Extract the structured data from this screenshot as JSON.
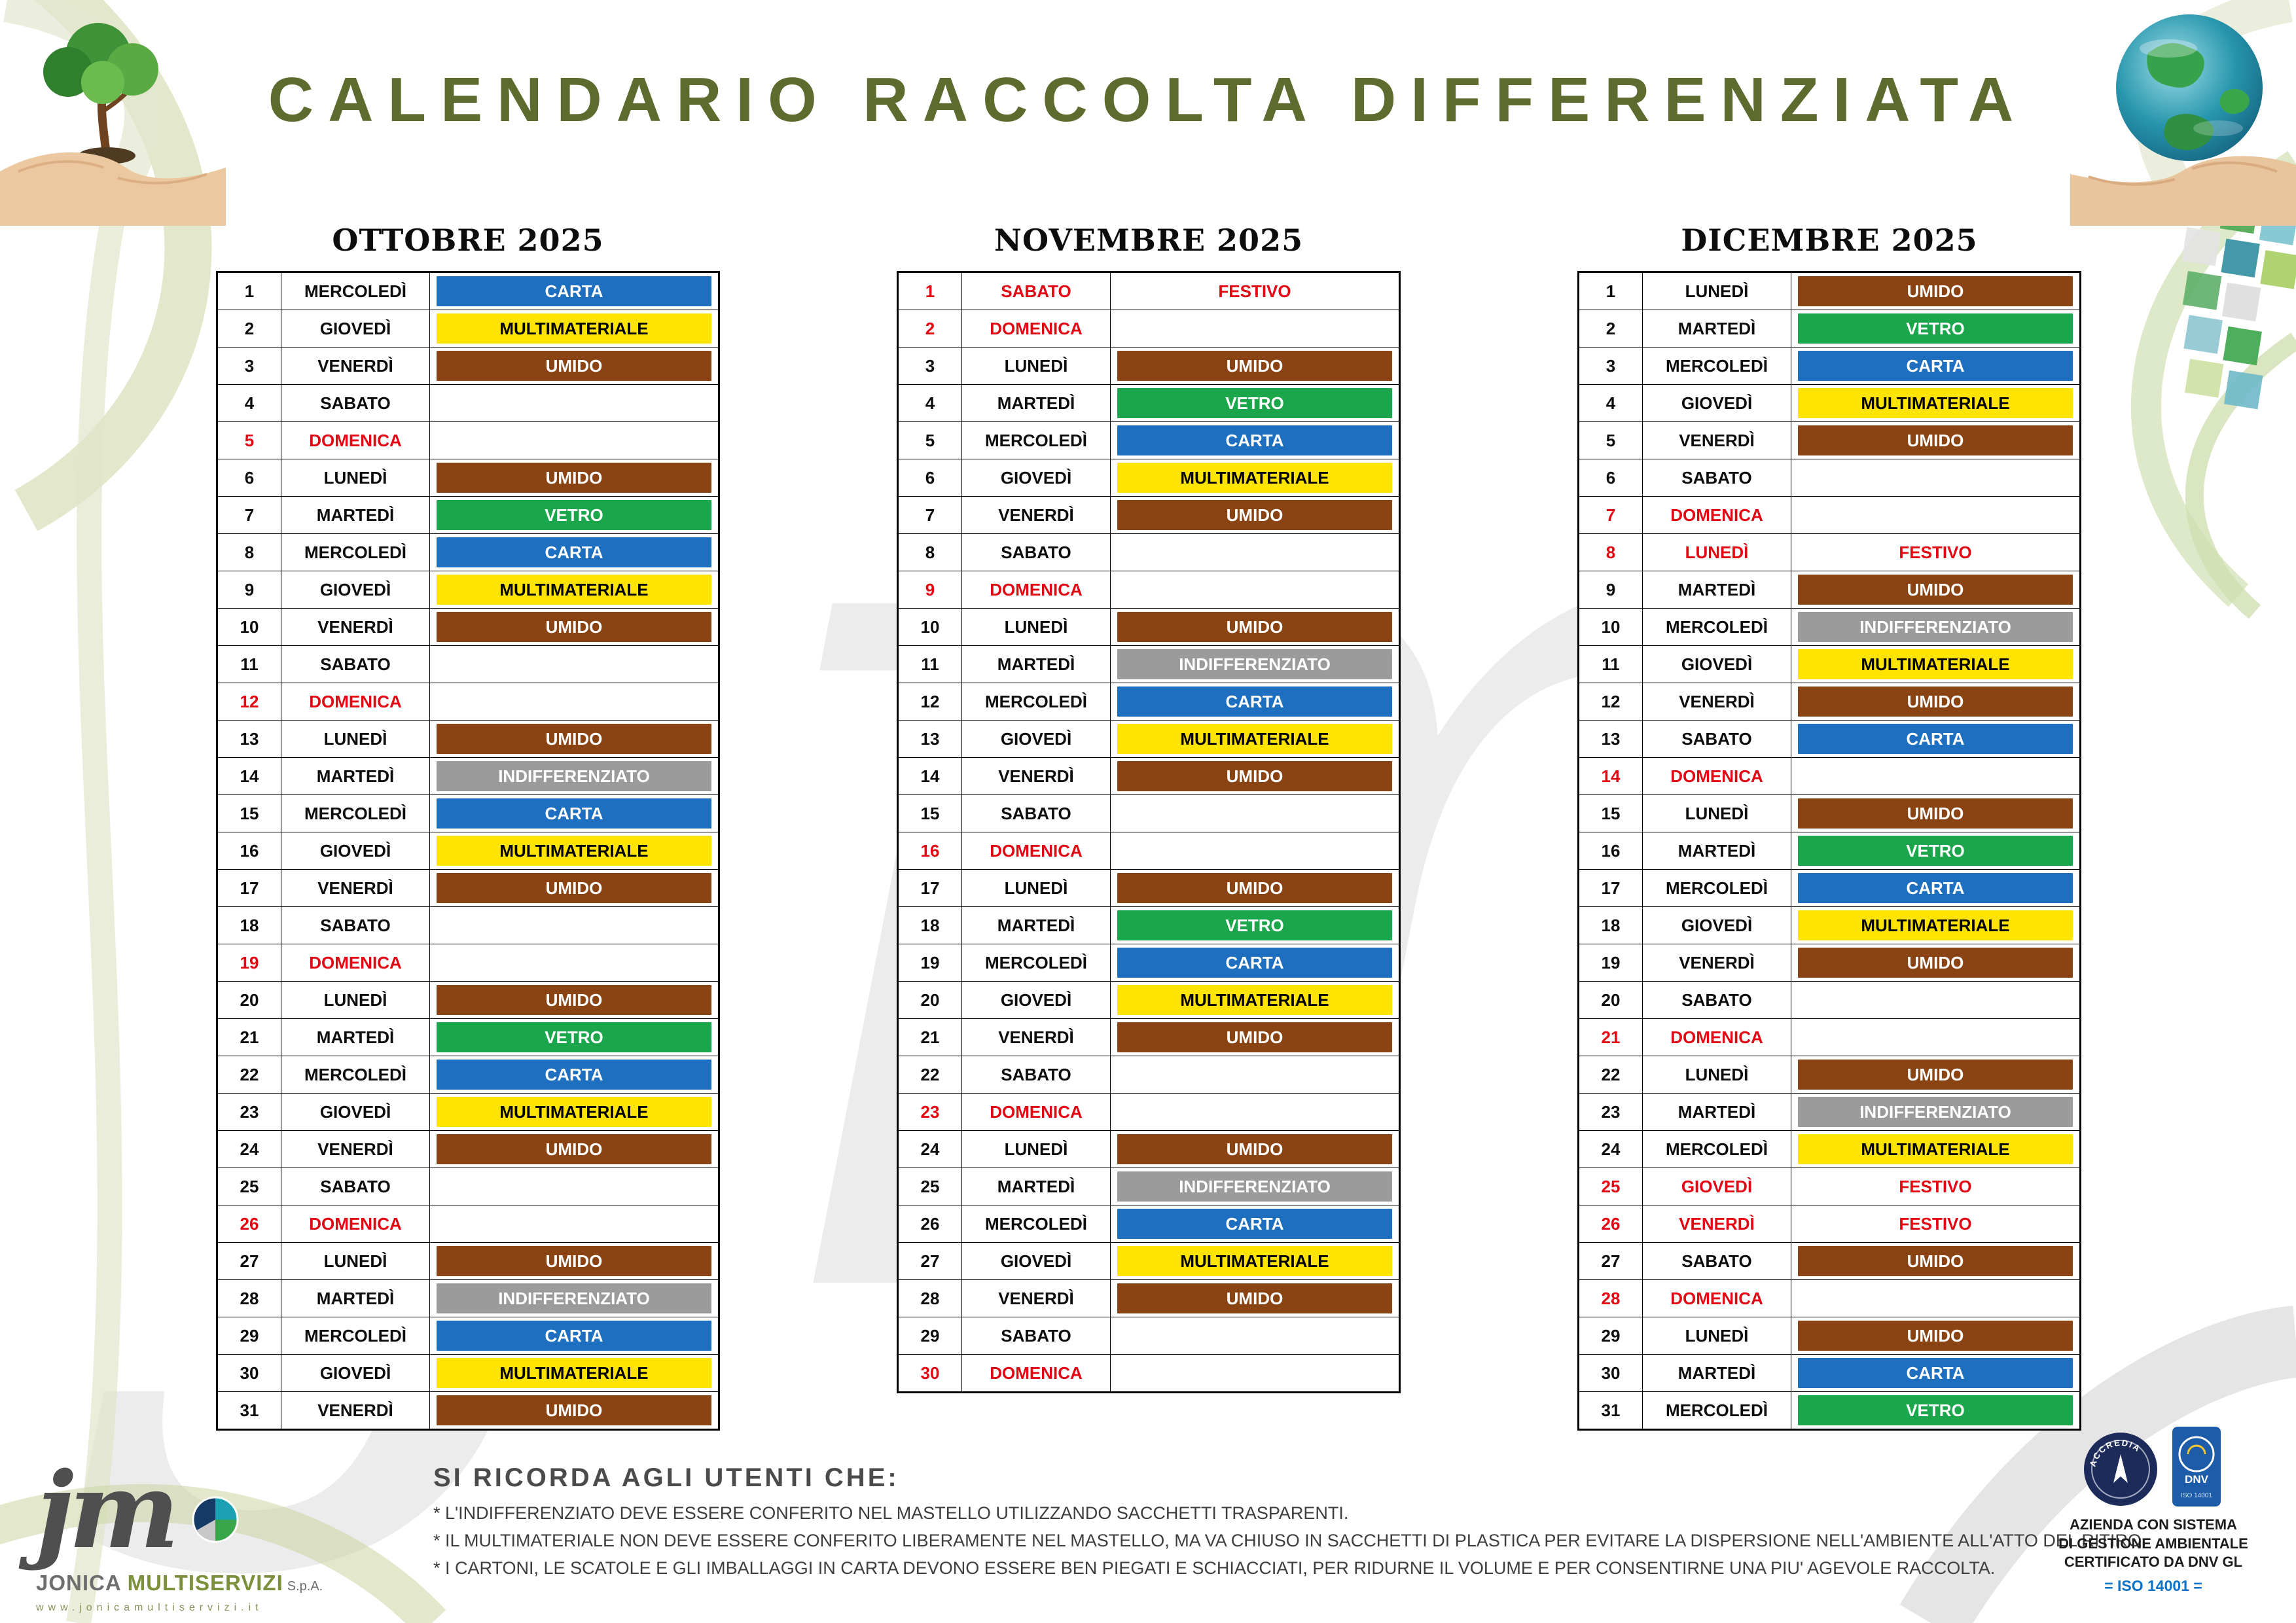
{
  "title": "CALENDARIO RACCOLTA DIFFERENZIATA",
  "months": [
    {
      "name": "OTTOBRE 2025",
      "days": [
        [
          1,
          "MERCOLEDÌ",
          "CARTA"
        ],
        [
          2,
          "GIOVEDÌ",
          "MULTIMATERIALE"
        ],
        [
          3,
          "VENERDÌ",
          "UMIDO"
        ],
        [
          4,
          "SABATO",
          ""
        ],
        [
          5,
          "DOMENICA",
          ""
        ],
        [
          6,
          "LUNEDÌ",
          "UMIDO"
        ],
        [
          7,
          "MARTEDÌ",
          "VETRO"
        ],
        [
          8,
          "MERCOLEDÌ",
          "CARTA"
        ],
        [
          9,
          "GIOVEDÌ",
          "MULTIMATERIALE"
        ],
        [
          10,
          "VENERDÌ",
          "UMIDO"
        ],
        [
          11,
          "SABATO",
          ""
        ],
        [
          12,
          "DOMENICA",
          ""
        ],
        [
          13,
          "LUNEDÌ",
          "UMIDO"
        ],
        [
          14,
          "MARTEDÌ",
          "INDIFFERENZIATO"
        ],
        [
          15,
          "MERCOLEDÌ",
          "CARTA"
        ],
        [
          16,
          "GIOVEDÌ",
          "MULTIMATERIALE"
        ],
        [
          17,
          "VENERDÌ",
          "UMIDO"
        ],
        [
          18,
          "SABATO",
          ""
        ],
        [
          19,
          "DOMENICA",
          ""
        ],
        [
          20,
          "LUNEDÌ",
          "UMIDO"
        ],
        [
          21,
          "MARTEDÌ",
          "VETRO"
        ],
        [
          22,
          "MERCOLEDÌ",
          "CARTA"
        ],
        [
          23,
          "GIOVEDÌ",
          "MULTIMATERIALE"
        ],
        [
          24,
          "VENERDÌ",
          "UMIDO"
        ],
        [
          25,
          "SABATO",
          ""
        ],
        [
          26,
          "DOMENICA",
          ""
        ],
        [
          27,
          "LUNEDÌ",
          "UMIDO"
        ],
        [
          28,
          "MARTEDÌ",
          "INDIFFERENZIATO"
        ],
        [
          29,
          "MERCOLEDÌ",
          "CARTA"
        ],
        [
          30,
          "GIOVEDÌ",
          "MULTIMATERIALE"
        ],
        [
          31,
          "VENERDÌ",
          "UMIDO"
        ]
      ]
    },
    {
      "name": "NOVEMBRE 2025",
      "days": [
        [
          1,
          "SABATO",
          "FESTIVO"
        ],
        [
          2,
          "DOMENICA",
          ""
        ],
        [
          3,
          "LUNEDÌ",
          "UMIDO"
        ],
        [
          4,
          "MARTEDÌ",
          "VETRO"
        ],
        [
          5,
          "MERCOLEDÌ",
          "CARTA"
        ],
        [
          6,
          "GIOVEDÌ",
          "MULTIMATERIALE"
        ],
        [
          7,
          "VENERDÌ",
          "UMIDO"
        ],
        [
          8,
          "SABATO",
          ""
        ],
        [
          9,
          "DOMENICA",
          ""
        ],
        [
          10,
          "LUNEDÌ",
          "UMIDO"
        ],
        [
          11,
          "MARTEDÌ",
          "INDIFFERENZIATO"
        ],
        [
          12,
          "MERCOLEDÌ",
          "CARTA"
        ],
        [
          13,
          "GIOVEDÌ",
          "MULTIMATERIALE"
        ],
        [
          14,
          "VENERDÌ",
          "UMIDO"
        ],
        [
          15,
          "SABATO",
          ""
        ],
        [
          16,
          "DOMENICA",
          ""
        ],
        [
          17,
          "LUNEDÌ",
          "UMIDO"
        ],
        [
          18,
          "MARTEDÌ",
          "VETRO"
        ],
        [
          19,
          "MERCOLEDÌ",
          "CARTA"
        ],
        [
          20,
          "GIOVEDÌ",
          "MULTIMATERIALE"
        ],
        [
          21,
          "VENERDÌ",
          "UMIDO"
        ],
        [
          22,
          "SABATO",
          ""
        ],
        [
          23,
          "DOMENICA",
          ""
        ],
        [
          24,
          "LUNEDÌ",
          "UMIDO"
        ],
        [
          25,
          "MARTEDÌ",
          "INDIFFERENZIATO"
        ],
        [
          26,
          "MERCOLEDÌ",
          "CARTA"
        ],
        [
          27,
          "GIOVEDÌ",
          "MULTIMATERIALE"
        ],
        [
          28,
          "VENERDÌ",
          "UMIDO"
        ],
        [
          29,
          "SABATO",
          ""
        ],
        [
          30,
          "DOMENICA",
          ""
        ]
      ]
    },
    {
      "name": "DICEMBRE 2025",
      "days": [
        [
          1,
          "LUNEDÌ",
          "UMIDO"
        ],
        [
          2,
          "MARTEDÌ",
          "VETRO"
        ],
        [
          3,
          "MERCOLEDÌ",
          "CARTA"
        ],
        [
          4,
          "GIOVEDÌ",
          "MULTIMATERIALE"
        ],
        [
          5,
          "VENERDÌ",
          "UMIDO"
        ],
        [
          6,
          "SABATO",
          ""
        ],
        [
          7,
          "DOMENICA",
          ""
        ],
        [
          8,
          "LUNEDÌ",
          "FESTIVO"
        ],
        [
          9,
          "MARTEDÌ",
          "UMIDO"
        ],
        [
          10,
          "MERCOLEDÌ",
          "INDIFFERENZIATO"
        ],
        [
          11,
          "GIOVEDÌ",
          "MULTIMATERIALE"
        ],
        [
          12,
          "VENERDÌ",
          "UMIDO"
        ],
        [
          13,
          "SABATO",
          "CARTA"
        ],
        [
          14,
          "DOMENICA",
          ""
        ],
        [
          15,
          "LUNEDÌ",
          "UMIDO"
        ],
        [
          16,
          "MARTEDÌ",
          "VETRO"
        ],
        [
          17,
          "MERCOLEDÌ",
          "CARTA"
        ],
        [
          18,
          "GIOVEDÌ",
          "MULTIMATERIALE"
        ],
        [
          19,
          "VENERDÌ",
          "UMIDO"
        ],
        [
          20,
          "SABATO",
          ""
        ],
        [
          21,
          "DOMENICA",
          ""
        ],
        [
          22,
          "LUNEDÌ",
          "UMIDO"
        ],
        [
          23,
          "MARTEDÌ",
          "INDIFFERENZIATO"
        ],
        [
          24,
          "MERCOLEDÌ",
          "MULTIMATERIALE"
        ],
        [
          25,
          "GIOVEDÌ",
          "FESTIVO"
        ],
        [
          26,
          "VENERDÌ",
          "FESTIVO"
        ],
        [
          27,
          "SABATO",
          "UMIDO"
        ],
        [
          28,
          "DOMENICA",
          ""
        ],
        [
          29,
          "LUNEDÌ",
          "UMIDO"
        ],
        [
          30,
          "MARTEDÌ",
          "CARTA"
        ],
        [
          31,
          "MERCOLEDÌ",
          "VETRO"
        ]
      ]
    }
  ],
  "waste_styles": {
    "CARTA": {
      "bg": "#1e6fbf",
      "fg": "#ffffff"
    },
    "MULTIMATERIALE": {
      "bg": "#ffe400",
      "fg": "#000000"
    },
    "UMIDO": {
      "bg": "#8a4413",
      "fg": "#ffffff"
    },
    "VETRO": {
      "bg": "#1ba64b",
      "fg": "#ffffff"
    },
    "INDIFFERENZIATO": {
      "bg": "#9b9b9b",
      "fg": "#ffffff"
    },
    "FESTIVO": {
      "bg": "#ffffff",
      "fg": "#e30613"
    }
  },
  "colors": {
    "sunday_red": "#e30613",
    "title_olive": "#5e6b2e"
  },
  "notes": {
    "heading": "SI RICORDA AGLI UTENTI CHE:",
    "lines": [
      "* L'INDIFFERENZIATO DEVE ESSERE CONFERITO NEL MASTELLO UTILIZZANDO SACCHETTI TRASPARENTI.",
      "* IL MULTIMATERIALE NON DEVE ESSERE CONFERITO LIBERAMENTE NEL MASTELLO, MA VA CHIUSO IN SACCHETTI DI PLASTICA PER EVITARE LA DISPERSIONE NELL'AMBIENTE ALL'ATTO DEL RITIRO.",
      "* I CARTONI, LE SCATOLE E GLI IMBALLAGGI IN CARTA DEVONO ESSERE BEN PIEGATI E SCHIACCIATI, PER RIDURNE IL VOLUME E PER CONSENTIRNE UNA PIU' AGEVOLE RACCOLTA."
    ]
  },
  "logo": {
    "mark": "jm",
    "company_first": "JONICA",
    "company_second": "MULTISERVIZI",
    "company_suffix": "S.p.A.",
    "website": "www.jonicamultiservizi.it"
  },
  "cert": {
    "badges": {
      "accredia": "ACCREDIA",
      "dnv": "DNV",
      "dnv_small": "ISO 14001"
    },
    "lines": [
      "AZIENDA CON SISTEMA",
      "DI GESTIONE AMBIENTALE",
      "CERTIFICATO DA DNV GL"
    ],
    "iso": "= ISO 14001 ="
  }
}
